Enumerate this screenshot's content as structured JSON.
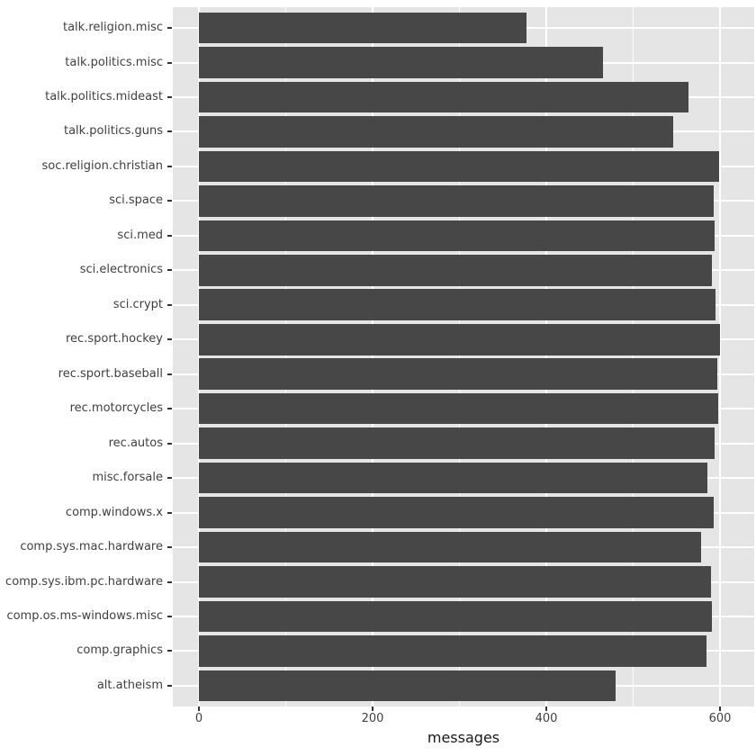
{
  "chart_data": {
    "type": "bar",
    "orientation": "horizontal",
    "title": "",
    "xlabel": "messages",
    "ylabel": "",
    "categories": [
      "talk.religion.misc",
      "talk.politics.misc",
      "talk.politics.mideast",
      "talk.politics.guns",
      "soc.religion.christian",
      "sci.space",
      "sci.med",
      "sci.electronics",
      "sci.crypt",
      "rec.sport.hockey",
      "rec.sport.baseball",
      "rec.motorcycles",
      "rec.autos",
      "misc.forsale",
      "comp.windows.x",
      "comp.sys.mac.hardware",
      "comp.sys.ibm.pc.hardware",
      "comp.os.ms-windows.misc",
      "comp.graphics",
      "alt.atheism"
    ],
    "values": [
      377,
      465,
      564,
      546,
      599,
      593,
      594,
      591,
      595,
      600,
      597,
      598,
      594,
      585,
      593,
      578,
      590,
      591,
      584,
      480
    ],
    "x_ticks": [
      0,
      200,
      400,
      600
    ],
    "x_minor_ticks": [
      100,
      300,
      500
    ],
    "xlim": [
      -31,
      641
    ],
    "bar_width_ratio": 0.9,
    "grid": "on",
    "legend_position": "none",
    "colors": {
      "bar_fill": "#474747",
      "panel_background": "#E5E5E5",
      "gridline": "#FFFFFF",
      "tick_mark": "#333333",
      "tick_label": "#404040",
      "axis_title": "#1A1A1A",
      "figure_background": "#FFFFFF"
    }
  }
}
